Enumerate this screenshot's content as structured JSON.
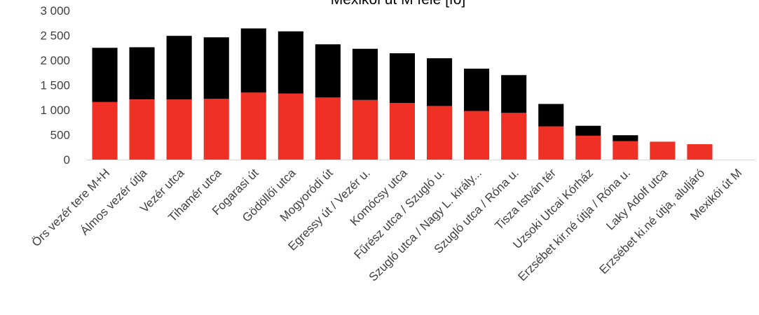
{
  "chart_data": {
    "type": "bar",
    "stacked": true,
    "title": "Mexikói út M felé [fő]",
    "categories": [
      "Örs vezér tere M+H",
      "Álmos vezér útja",
      "Vezér utca",
      "Tihamér utca",
      "Fogarasi út",
      "Gödöllői utca",
      "Mogyoródi út",
      "Egressy út / Vezér u.",
      "Komócsy utca",
      "Fűrész utca / Szugló u.",
      "Szugló utca / Nagy L. király...",
      "Szugló utca / Róna u.",
      "Tisza István tér",
      "Uzsoki Utcai Kórház",
      "Erzsébet kir.né útja / Róna u.",
      "Laky Adolf utca",
      "Erzsébet ki.né útja, aluljáró",
      "Mexikói út M"
    ],
    "series": [
      {
        "color": "#EE3124",
        "values": [
          1160,
          1210,
          1210,
          1220,
          1350,
          1330,
          1250,
          1200,
          1140,
          1080,
          980,
          940,
          670,
          480,
          370,
          360,
          310,
          0
        ]
      },
      {
        "color": "#000000",
        "values": [
          1090,
          1050,
          1280,
          1240,
          1290,
          1250,
          1070,
          1030,
          1000,
          960,
          850,
          760,
          450,
          200,
          120,
          0,
          0,
          0
        ]
      }
    ],
    "yticks": [
      "0",
      "500",
      "1 000",
      "1 500",
      "2 000",
      "2 500",
      "3 000"
    ],
    "ylim": [
      0,
      3000
    ],
    "grid": false,
    "legend": "none"
  }
}
